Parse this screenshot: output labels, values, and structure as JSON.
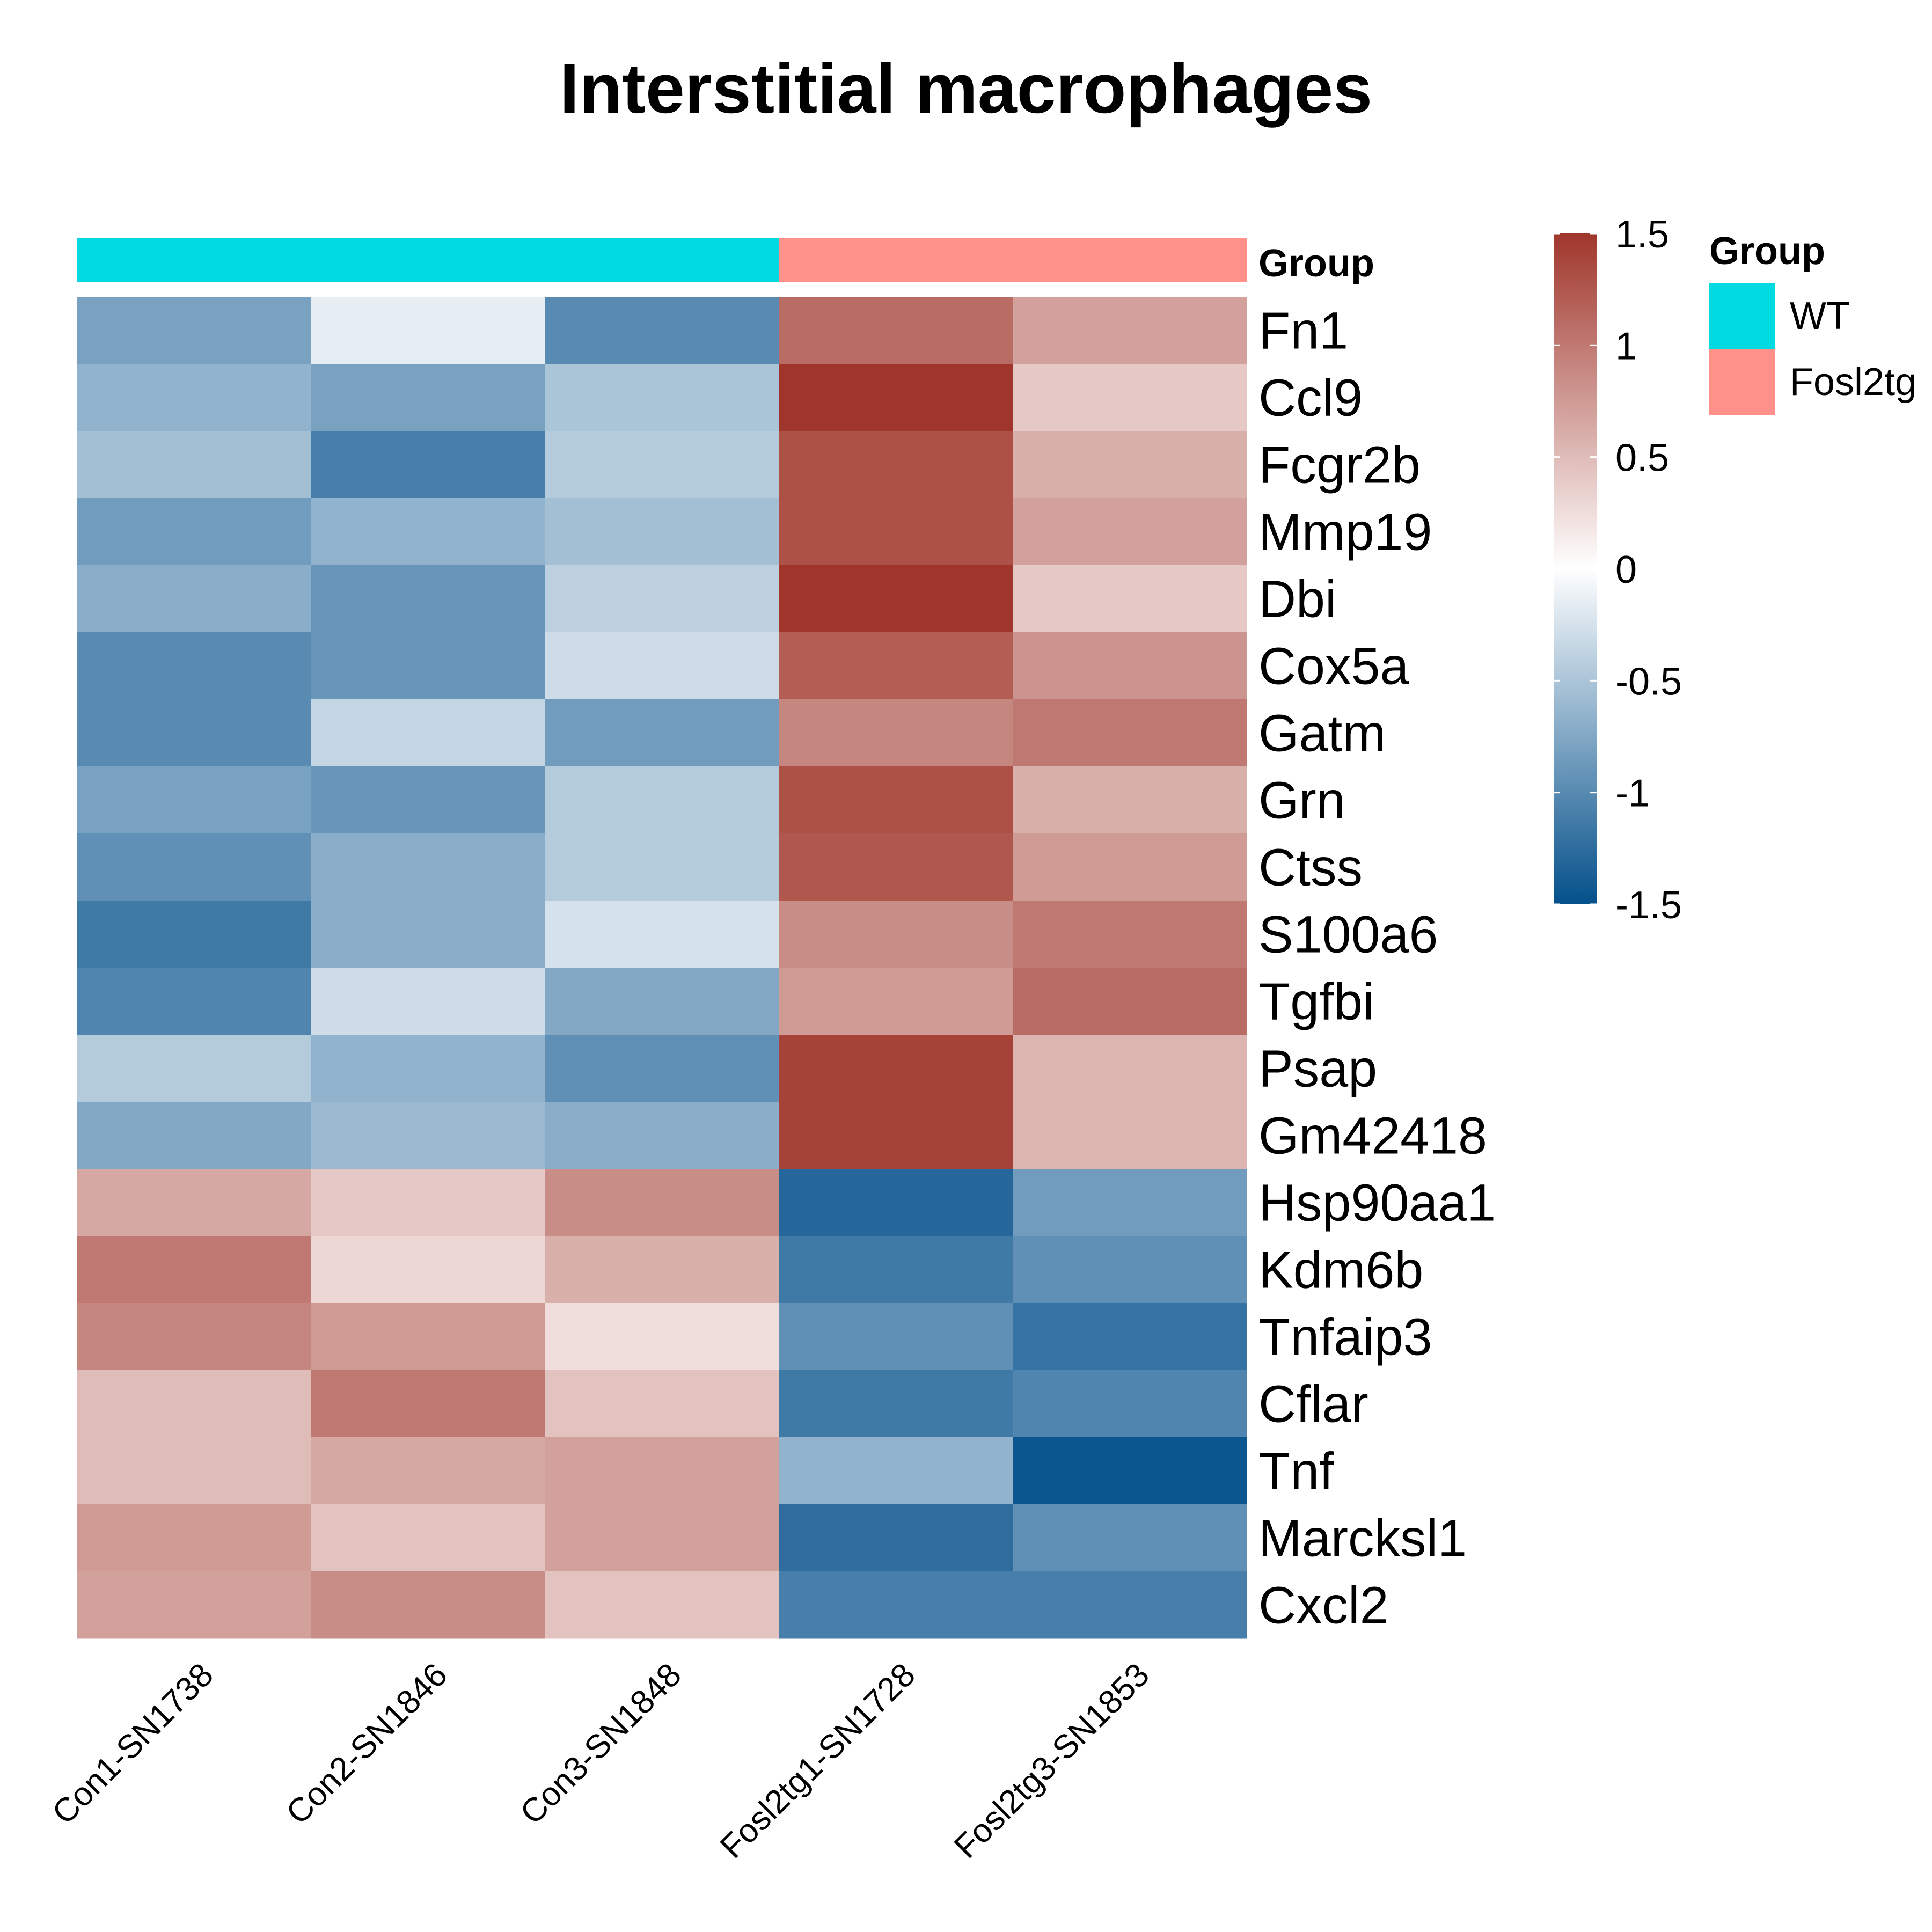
{
  "chart_data": {
    "type": "heatmap",
    "title": "Interstitial macrophages",
    "columns": [
      "Con1-SN1738",
      "Con2-SN1846",
      "Con3-SN1848",
      "Fosl2tg1-SN1728",
      "Fosl2tg3-SN1853"
    ],
    "rows": [
      "Fn1",
      "Ccl9",
      "Fcgr2b",
      "Mmp19",
      "Dbi",
      "Cox5a",
      "Gatm",
      "Grn",
      "Ctss",
      "S100a6",
      "Tgfbi",
      "Psap",
      "Gm42418",
      "Hsp90aa1",
      "Kdm6b",
      "Tnfaip3",
      "Cflar",
      "Tnf",
      "Marcksl1",
      "Cxcl2"
    ],
    "values": [
      [
        -0.8,
        -0.15,
        -1.0,
        1.1,
        0.7
      ],
      [
        -0.65,
        -0.8,
        -0.5,
        1.5,
        0.4
      ],
      [
        -0.55,
        -1.1,
        -0.45,
        1.3,
        0.6
      ],
      [
        -0.85,
        -0.65,
        -0.55,
        1.3,
        0.7
      ],
      [
        -0.7,
        -0.9,
        -0.4,
        1.5,
        0.4
      ],
      [
        -1.0,
        -0.9,
        -0.3,
        1.2,
        0.8
      ],
      [
        -1.0,
        -0.35,
        -0.85,
        0.9,
        1.0
      ],
      [
        -0.8,
        -0.9,
        -0.45,
        1.3,
        0.6
      ],
      [
        -0.95,
        -0.7,
        -0.45,
        1.25,
        0.75
      ],
      [
        -1.15,
        -0.7,
        -0.25,
        0.85,
        1.0
      ],
      [
        -1.05,
        -0.3,
        -0.75,
        0.75,
        1.1
      ],
      [
        -0.45,
        -0.65,
        -0.95,
        1.4,
        0.55
      ],
      [
        -0.75,
        -0.6,
        -0.7,
        1.4,
        0.55
      ],
      [
        0.65,
        0.4,
        0.85,
        -1.3,
        -0.85
      ],
      [
        1.0,
        0.3,
        0.6,
        -1.15,
        -0.95
      ],
      [
        0.9,
        0.75,
        0.25,
        -0.95,
        -1.2
      ],
      [
        0.5,
        1.0,
        0.45,
        -1.15,
        -1.05
      ],
      [
        0.5,
        0.65,
        0.7,
        -0.65,
        -1.45
      ],
      [
        0.75,
        0.45,
        0.7,
        -1.25,
        -0.95
      ],
      [
        0.7,
        0.85,
        0.45,
        -1.1,
        -1.1
      ]
    ],
    "color_scale": {
      "min": -1.5,
      "max": 1.5,
      "low": "#04508b",
      "mid": "#ffffff",
      "high": "#a0362b",
      "ticks": [
        "1.5",
        "1",
        "0.5",
        "0",
        "-0.5",
        "-1",
        "-1.5"
      ]
    },
    "annotation": {
      "label": "Group",
      "column_groups": [
        "WT",
        "WT",
        "WT",
        "Fosl2tg",
        "Fosl2tg"
      ]
    },
    "legend": {
      "title": "Group",
      "position": "right",
      "items": [
        {
          "label": "WT",
          "color": "#00dae0"
        },
        {
          "label": "Fosl2tg",
          "color": "#ff918a"
        }
      ]
    }
  }
}
